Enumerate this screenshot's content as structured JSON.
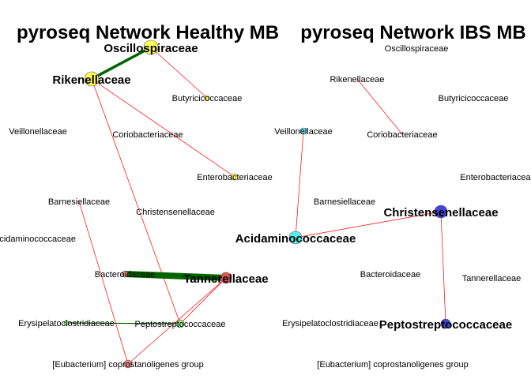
{
  "colors": {
    "edge_thin": "#ff0000",
    "edge_thick": "#006400",
    "yellow": "#ffff55",
    "cyan": "#55eeee",
    "blue": "#4444dd",
    "red": "#dd5555",
    "pink": "#ee8888",
    "green": "#99ee88"
  },
  "networks": [
    {
      "id": "healthy",
      "title": "pyroseq Network Healthy MB",
      "nodes": [
        {
          "id": "oscillo",
          "label": "Oscillospiraceae",
          "big": true,
          "color": "yellow",
          "size": 9,
          "dx": 0,
          "dy": -1
        },
        {
          "id": "rikenella",
          "label": "Rikenellaceae",
          "big": true,
          "color": "yellow",
          "size": 9,
          "dx": 0,
          "dy": 0
        },
        {
          "id": "butyri",
          "label": "Butyricicoccaceae",
          "big": false,
          "color": "yellow",
          "size": 3,
          "dx": 0,
          "dy": 0
        },
        {
          "id": "veillo",
          "label": "Veillonellaceae",
          "big": false,
          "color": "none",
          "size": 0,
          "dx": 0,
          "dy": 0
        },
        {
          "id": "corio",
          "label": "Coriobacteriaceae",
          "big": false,
          "color": "none",
          "size": 0,
          "dx": 0,
          "dy": 0
        },
        {
          "id": "entero",
          "label": "Enterobacteriaceae",
          "big": false,
          "color": "yellow",
          "size": 4,
          "dx": 0,
          "dy": 0
        },
        {
          "id": "barnes",
          "label": "Barnesiellaceae",
          "big": false,
          "color": "none",
          "size": 0,
          "dx": 0,
          "dy": 0
        },
        {
          "id": "christ",
          "label": "Christensenellaceae",
          "big": false,
          "color": "none",
          "size": 0,
          "dx": 0,
          "dy": 0
        },
        {
          "id": "acidamino",
          "label": "Acidaminococcaceae",
          "big": false,
          "color": "none",
          "size": 0,
          "dx": 0,
          "dy": 0
        },
        {
          "id": "bactero",
          "label": "Bacteroidaceae",
          "big": false,
          "color": "pink",
          "size": 4,
          "dx": 0,
          "dy": 0
        },
        {
          "id": "tanner",
          "label": "Tannerellaceae",
          "big": true,
          "color": "red",
          "size": 7,
          "dx": 0,
          "dy": 0
        },
        {
          "id": "erysip",
          "label": "Erysipelatoclostridiaceae",
          "big": false,
          "color": "green",
          "size": 3,
          "dx": 0,
          "dy": 0
        },
        {
          "id": "pepto",
          "label": "Peptostreptococcaceae",
          "big": false,
          "color": "green",
          "size": 5,
          "dx": 0,
          "dy": 0
        },
        {
          "id": "eubact",
          "label": "[Eubacterium] coprostanoligenes group",
          "big": false,
          "color": "pink",
          "size": 5,
          "dx": 0,
          "dy": 0
        }
      ],
      "edges": [
        {
          "from": "rikenella",
          "to": "oscillo",
          "thick": true
        },
        {
          "from": "oscillo",
          "to": "butyri",
          "thick": false
        },
        {
          "from": "rikenella",
          "to": "entero",
          "thick": false
        },
        {
          "from": "rikenella",
          "to": "pepto",
          "thick": false
        },
        {
          "from": "bactero",
          "to": "tanner",
          "thick": true
        },
        {
          "from": "erysip",
          "to": "pepto",
          "thick": true
        },
        {
          "from": "tanner",
          "to": "pepto",
          "thick": false
        },
        {
          "from": "tanner",
          "to": "eubact",
          "thick": false
        },
        {
          "from": "barnes",
          "to": "eubact",
          "thick": false
        }
      ]
    },
    {
      "id": "ibs",
      "title": "pyroseq Network IBS MB",
      "nodes": [
        {
          "id": "oscillo",
          "label": "Oscillospiraceae",
          "big": false,
          "color": "none",
          "size": 0
        },
        {
          "id": "rikenella",
          "label": "Rikenellaceae",
          "big": false,
          "color": "none",
          "size": 0
        },
        {
          "id": "butyri",
          "label": "Butyricicoccaceae",
          "big": false,
          "color": "none",
          "size": 0
        },
        {
          "id": "veillo",
          "label": "Veillonellaceae",
          "big": false,
          "color": "cyan",
          "size": 4
        },
        {
          "id": "corio",
          "label": "Coriobacteriaceae",
          "big": false,
          "color": "none",
          "size": 0
        },
        {
          "id": "entero",
          "label": "Enterobacteriaceae",
          "big": false,
          "color": "none",
          "size": 0
        },
        {
          "id": "barnes",
          "label": "Barnesiellaceae",
          "big": false,
          "color": "none",
          "size": 0
        },
        {
          "id": "christ",
          "label": "Christensenellaceae",
          "big": true,
          "color": "blue",
          "size": 8
        },
        {
          "id": "acidamino",
          "label": "Acidaminococcaceae",
          "big": true,
          "color": "cyan",
          "size": 8
        },
        {
          "id": "bactero",
          "label": "Bacteroidaceae",
          "big": false,
          "color": "none",
          "size": 0
        },
        {
          "id": "tanner",
          "label": "Tannerellaceae",
          "big": false,
          "color": "none",
          "size": 0
        },
        {
          "id": "erysip",
          "label": "Erysipelatoclostridiaceae",
          "big": false,
          "color": "none",
          "size": 0
        },
        {
          "id": "pepto",
          "label": "Peptostreptococcaceae",
          "big": true,
          "color": "blue",
          "size": 6
        },
        {
          "id": "eubact",
          "label": "[Eubacterium] coprostanoligenes group",
          "big": false,
          "color": "none",
          "size": 0
        }
      ],
      "edges": [
        {
          "from": "rikenella",
          "to": "corio",
          "thick": false
        },
        {
          "from": "veillo",
          "to": "acidamino",
          "thick": false
        },
        {
          "from": "acidamino",
          "to": "christ",
          "thick": false
        },
        {
          "from": "christ",
          "to": "pepto",
          "thick": false
        }
      ]
    }
  ]
}
